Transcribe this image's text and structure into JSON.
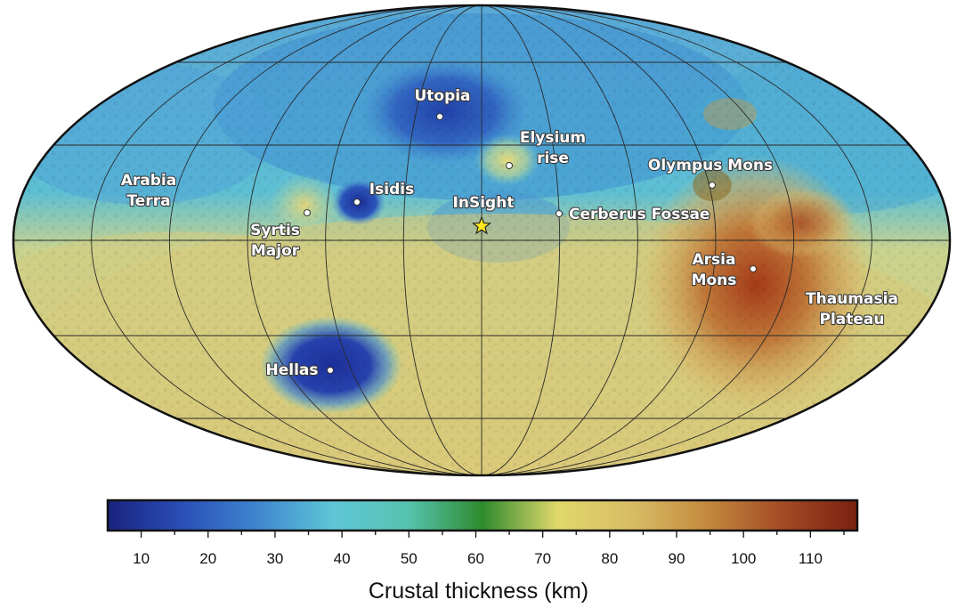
{
  "map": {
    "projection": "mollweide",
    "features": [
      {
        "id": "utopia",
        "lines": [
          "Utopia"
        ],
        "marker": "dot"
      },
      {
        "id": "elysium",
        "lines": [
          "Elysium",
          "rise"
        ],
        "marker": "dot"
      },
      {
        "id": "olympus",
        "lines": [
          "Olympus Mons"
        ],
        "marker": "dot"
      },
      {
        "id": "arabia",
        "lines": [
          "Arabia",
          "Terra"
        ],
        "marker": "none"
      },
      {
        "id": "isidis",
        "lines": [
          "Isidis"
        ],
        "marker": "dot"
      },
      {
        "id": "insight",
        "lines": [
          "InSight"
        ],
        "marker": "star"
      },
      {
        "id": "cerberus",
        "lines": [
          "Cerberus Fossae"
        ],
        "marker": "dot"
      },
      {
        "id": "syrtis",
        "lines": [
          "Syrtis",
          "Major"
        ],
        "marker": "dot"
      },
      {
        "id": "arsia",
        "lines": [
          "Arsia",
          "Mons"
        ],
        "marker": "dot"
      },
      {
        "id": "thaumasia",
        "lines": [
          "Thaumasia",
          "Plateau"
        ],
        "marker": "none"
      },
      {
        "id": "hellas",
        "lines": [
          "Hellas"
        ],
        "marker": "dot"
      }
    ],
    "star_color": "#ffe81a"
  },
  "colorbar": {
    "title": "Crustal thickness (km)",
    "range": [
      5,
      117
    ],
    "ticks": [
      "10",
      "20",
      "30",
      "40",
      "50",
      "60",
      "70",
      "80",
      "90",
      "100",
      "110"
    ],
    "tick_values": [
      10,
      20,
      30,
      40,
      50,
      60,
      70,
      80,
      90,
      100,
      110
    ],
    "colors": [
      "#1a237e",
      "#2a4fb8",
      "#3f86cf",
      "#5ec6d6",
      "#56c4b0",
      "#2e8b2e",
      "#e0d86a",
      "#d8bc66",
      "#c48a3e",
      "#a44b25",
      "#7a2010"
    ]
  }
}
